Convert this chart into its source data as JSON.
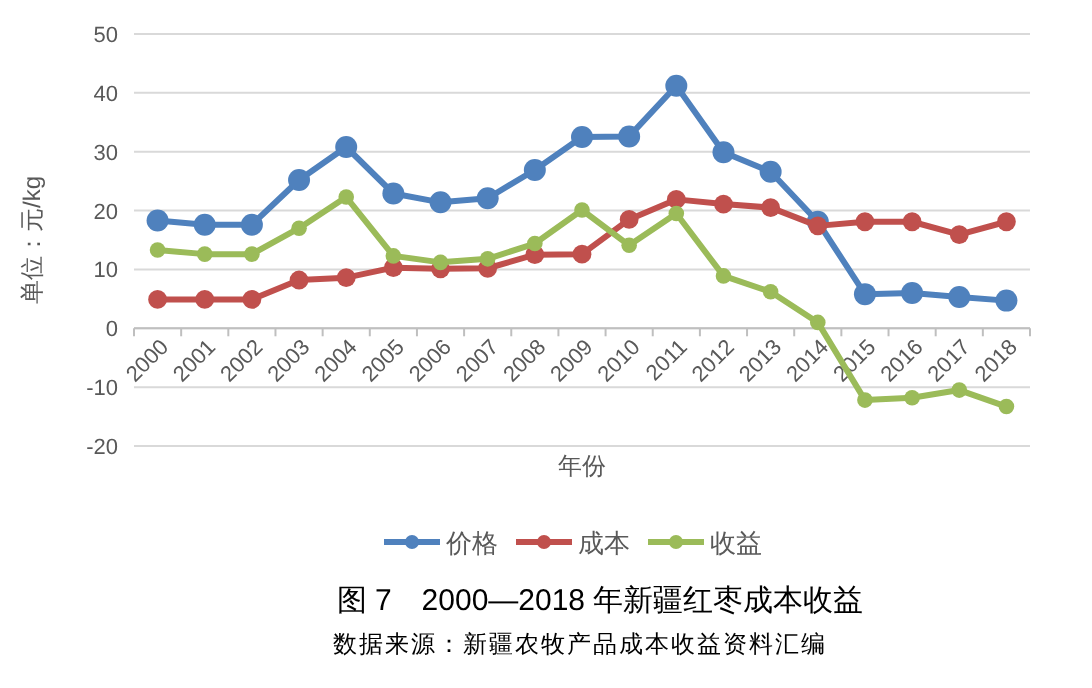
{
  "chart_data": {
    "type": "line",
    "title": "图 7　2000—2018 年新疆红枣成本收益",
    "xlabel": "年份",
    "ylabel": "单位：元/kg",
    "annotations": [
      "数据来源：新疆农牧产品成本收益资料汇编"
    ],
    "categories": [
      "2000",
      "2001",
      "2002",
      "2003",
      "2004",
      "2005",
      "2006",
      "2007",
      "2008",
      "2009",
      "2010",
      "2011",
      "2012",
      "2013",
      "2014",
      "2015",
      "2016",
      "2017",
      "2018"
    ],
    "series": [
      {
        "name": "价格",
        "color": "#4f81bd",
        "values": [
          18.3,
          17.6,
          17.6,
          25.2,
          30.8,
          22.9,
          21.4,
          22.1,
          26.9,
          32.5,
          32.6,
          41.2,
          29.9,
          26.6,
          18.1,
          5.8,
          6.0,
          5.3,
          4.7
        ]
      },
      {
        "name": "成本",
        "color": "#c0504d",
        "values": [
          4.9,
          4.9,
          4.9,
          8.2,
          8.6,
          10.3,
          10.1,
          10.2,
          12.5,
          12.6,
          18.5,
          21.9,
          21.1,
          20.5,
          17.4,
          18.1,
          18.1,
          15.9,
          18.1
        ]
      },
      {
        "name": "收益",
        "color": "#9bbb59",
        "values": [
          13.3,
          12.6,
          12.6,
          17.0,
          22.3,
          12.3,
          11.2,
          11.8,
          14.4,
          20.1,
          14.1,
          19.5,
          8.9,
          6.2,
          1.0,
          -12.2,
          -11.8,
          -10.5,
          -13.3
        ]
      }
    ],
    "ylim": [
      -20,
      50
    ],
    "yticks": [
      -20,
      -10,
      0,
      10,
      20,
      30,
      40,
      50
    ],
    "grid": "y",
    "legend": "bottom",
    "marker": "circle",
    "line_style": "solid"
  }
}
